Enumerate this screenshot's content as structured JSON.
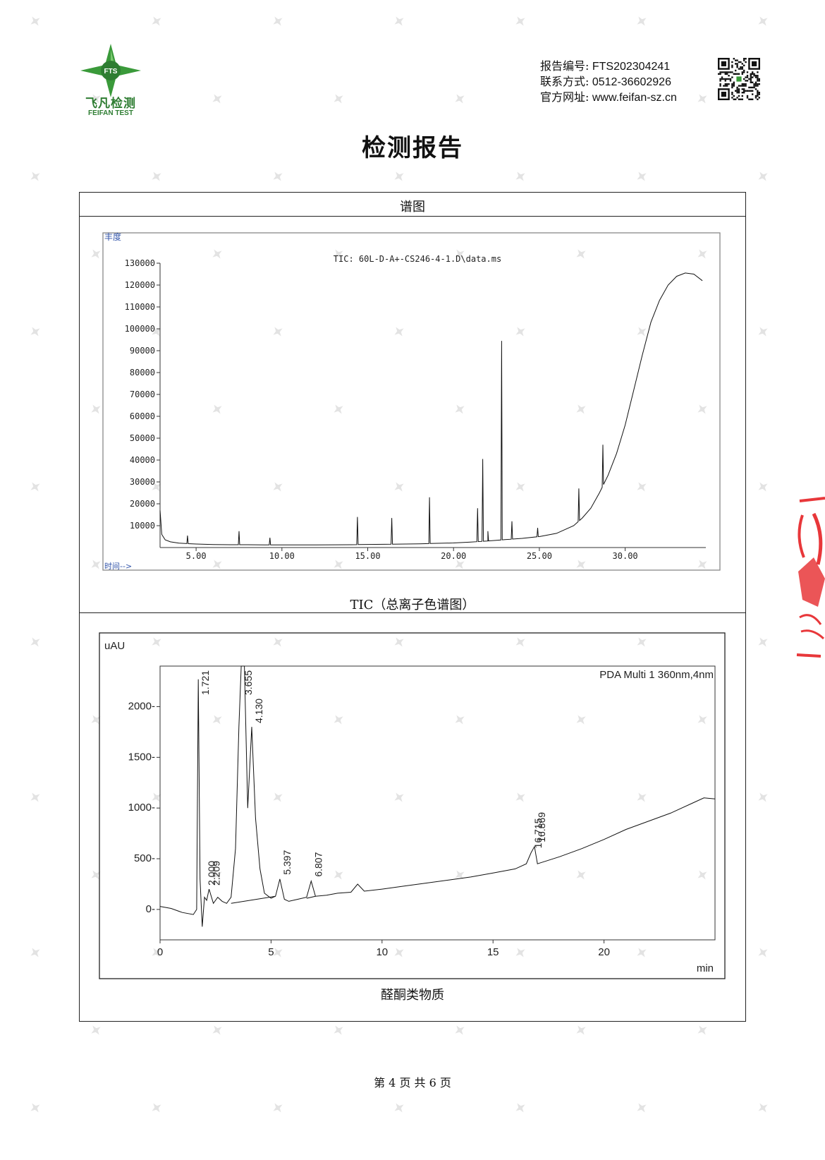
{
  "logo": {
    "badge": "FTS",
    "name_cn": "飞凡检测",
    "name_en": "FEIFAN TEST",
    "color": "#2e7d32"
  },
  "header": {
    "report_no_label": "报告编号:",
    "report_no": "FTS202304241",
    "contact_label": "联系方式:",
    "contact": "0512-36602926",
    "website_label": "官方网址:",
    "website": "www.feifan-sz.cn"
  },
  "title": "检测报告",
  "section_title": "谱图",
  "watermark_icon": "feifan-star-icon",
  "chart_data": [
    {
      "type": "line",
      "title": "TIC:  60L-D-A+-CS246-4-1.D\\data.ms",
      "ylabel": "丰度",
      "xlabel": "时间-->",
      "caption": "TIC（总离子色谱图）",
      "xlim": [
        2.9,
        34.7
      ],
      "ylim": [
        0,
        130000
      ],
      "xticks": [
        5,
        10,
        15,
        20,
        25,
        30
      ],
      "xtick_labels": [
        "5.00",
        "10.00",
        "15.00",
        "20.00",
        "25.00",
        "30.00"
      ],
      "yticks": [
        10000,
        20000,
        30000,
        40000,
        50000,
        60000,
        70000,
        80000,
        90000,
        100000,
        110000,
        120000,
        130000
      ],
      "series": [
        {
          "x": [
            2.9,
            3.0,
            3.2,
            3.5,
            4.0,
            5.0,
            6.0,
            7.0,
            8.0,
            9.0,
            10.0,
            12.0,
            14.0,
            16.0,
            18.0,
            20.0,
            21.0,
            22.0,
            23.0,
            24.0,
            25.0,
            26.0,
            27.0,
            27.5,
            28.0,
            28.5,
            29.0,
            29.5,
            30.0,
            30.5,
            31.0,
            31.5,
            32.0,
            32.5,
            33.0,
            33.5,
            34.0,
            34.5
          ],
          "y": [
            17000,
            6000,
            3500,
            2600,
            2000,
            1600,
            1400,
            1300,
            1300,
            1200,
            1200,
            1200,
            1300,
            1500,
            1700,
            2100,
            2500,
            3000,
            3600,
            4200,
            5000,
            6500,
            10000,
            13500,
            18000,
            25000,
            33000,
            43000,
            56000,
            72000,
            88000,
            103000,
            113000,
            120000,
            124000,
            125500,
            125000,
            122000
          ]
        }
      ],
      "peaks": [
        {
          "x": 4.5,
          "y": 5500
        },
        {
          "x": 7.5,
          "y": 7500
        },
        {
          "x": 9.3,
          "y": 4500
        },
        {
          "x": 14.4,
          "y": 14000
        },
        {
          "x": 16.4,
          "y": 13500
        },
        {
          "x": 18.6,
          "y": 23000
        },
        {
          "x": 21.4,
          "y": 18000
        },
        {
          "x": 21.7,
          "y": 40500
        },
        {
          "x": 22.0,
          "y": 7500
        },
        {
          "x": 22.8,
          "y": 94500
        },
        {
          "x": 23.4,
          "y": 12000
        },
        {
          "x": 24.9,
          "y": 9000
        },
        {
          "x": 27.3,
          "y": 27000
        },
        {
          "x": 28.7,
          "y": 47000
        }
      ]
    },
    {
      "type": "line",
      "title": "PDA Multi 1 360nm,4nm",
      "ylabel": "uAU",
      "xlabel": "min",
      "caption": "醛酮类物质",
      "xlim": [
        0,
        25
      ],
      "ylim": [
        -300,
        2400
      ],
      "xticks": [
        0,
        5,
        10,
        15,
        20
      ],
      "yticks": [
        0,
        500,
        1000,
        1500,
        2000
      ],
      "series": [
        {
          "x": [
            0,
            0.5,
            1.0,
            1.5,
            1.65,
            1.721,
            1.8,
            1.9,
            2.0,
            2.1,
            2.209,
            2.4,
            2.6,
            2.8,
            3.0,
            3.2,
            3.4,
            3.55,
            3.655,
            3.8,
            3.95,
            4.13,
            4.3,
            4.5,
            4.7,
            5.0,
            5.2,
            5.397,
            5.6,
            5.8,
            6.2,
            6.6,
            6.807,
            7.0,
            7.5,
            8.0,
            8.6,
            8.9,
            9.2,
            10.0,
            11.0,
            12.0,
            13.0,
            14.0,
            15.0,
            16.0,
            16.5,
            16.715,
            16.869,
            17.0,
            18.0,
            19.0,
            20.0,
            21.0,
            22.0,
            23.0,
            24.0,
            24.5,
            25.0
          ],
          "y": [
            30,
            10,
            -30,
            -50,
            0,
            2270,
            300,
            -170,
            120,
            90,
            200,
            60,
            120,
            80,
            60,
            120,
            600,
            1800,
            2400,
            2400,
            1000,
            1800,
            900,
            400,
            160,
            110,
            130,
            300,
            100,
            80,
            100,
            120,
            280,
            130,
            140,
            160,
            170,
            250,
            180,
            200,
            230,
            260,
            290,
            320,
            360,
            400,
            450,
            560,
            620,
            450,
            520,
            600,
            690,
            790,
            870,
            950,
            1050,
            1100,
            1090
          ]
        }
      ],
      "peak_labels": [
        {
          "label": "1.721",
          "x": 1.721,
          "y": 2270
        },
        {
          "label": "2.000",
          "x": 2.0,
          "y": 120
        },
        {
          "label": "2.209",
          "x": 2.209,
          "y": 200
        },
        {
          "label": "3.655",
          "x": 3.655,
          "y": 2400
        },
        {
          "label": "4.130",
          "x": 4.13,
          "y": 1800
        },
        {
          "label": "5.397",
          "x": 5.397,
          "y": 300
        },
        {
          "label": "6.807",
          "x": 6.807,
          "y": 280
        },
        {
          "label": "16.715",
          "x": 16.715,
          "y": 560
        },
        {
          "label": "16.869",
          "x": 16.869,
          "y": 620
        }
      ]
    }
  ],
  "footer": "第 4 页  共 6 页"
}
